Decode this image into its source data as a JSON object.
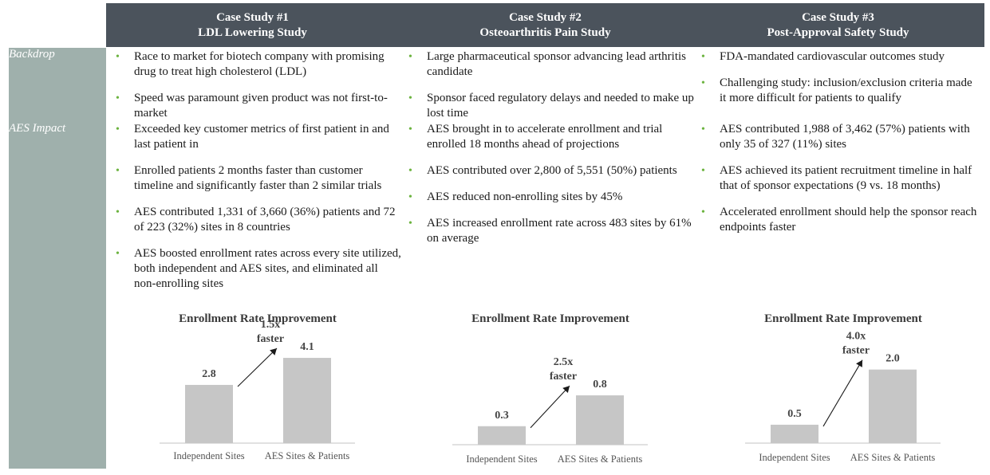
{
  "header": {
    "columns": [
      {
        "line1": "Case Study #1",
        "line2": "LDL Lowering Study"
      },
      {
        "line1": "Case Study #2",
        "line2": "Osteoarthritis Pain Study"
      },
      {
        "line1": "Case Study #3",
        "line2": "Post-Approval Safety Study"
      }
    ]
  },
  "rows": {
    "backdrop_label": "Backdrop",
    "impact_label": "AES Impact"
  },
  "studies": [
    {
      "backdrop": [
        "Race to market for biotech company with promising drug to treat high cholesterol (LDL)",
        "Speed was paramount given product was not first-to-market"
      ],
      "impact": [
        "Exceeded key customer metrics of first patient in and last patient in",
        "Enrolled patients 2 months faster than customer timeline and significantly faster than 2 similar trials",
        "AES contributed 1,331 of 3,660 (36%) patients and 72 of 223 (32%) sites in 8 countries",
        "AES boosted enrollment rates across every site utilized, both independent and AES sites, and eliminated all non-enrolling sites"
      ]
    },
    {
      "backdrop": [
        "Large pharmaceutical sponsor advancing lead arthritis candidate",
        "Sponsor faced regulatory delays and needed to make up lost time"
      ],
      "impact": [
        "AES brought in to accelerate enrollment and trial enrolled 18 months ahead of projections",
        "AES contributed over 2,800 of 5,551 (50%) patients",
        "AES reduced non-enrolling sites by 45%",
        "AES increased enrollment rate across 483 sites by 61% on average"
      ]
    },
    {
      "backdrop": [
        "FDA-mandated cardiovascular outcomes study",
        "Challenging study: inclusion/exclusion criteria made it more difficult for patients to qualify"
      ],
      "impact": [
        "AES contributed 1,988 of 3,462 (57%) patients with only 35 of 327 (11%) sites",
        "AES achieved its patient recruitment timeline in half that of sponsor expectations (9 vs. 18 months)",
        "Accelerated enrollment should help the sponsor reach endpoints faster"
      ]
    }
  ],
  "bullet_char": "•",
  "colors": {
    "header_bg": "#4b535c",
    "sidebar_bg": "#9fb0ac",
    "bullet": "#6cb33f",
    "bar": "#c6c6c6"
  },
  "chart_data": [
    {
      "type": "bar",
      "title": "Enrollment Rate Improvement",
      "categories": [
        "Independent Sites",
        "AES Sites & Patients"
      ],
      "values": [
        2.8,
        4.1
      ],
      "value_labels": [
        "2.8",
        "4.1"
      ],
      "annotation": {
        "line1": "1.5x",
        "line2": "faster"
      },
      "ylim": [
        0,
        4.6
      ],
      "xlabel": "",
      "ylabel": ""
    },
    {
      "type": "bar",
      "title": "Enrollment Rate Improvement",
      "categories": [
        "Independent Sites",
        "AES Sites & Patients"
      ],
      "values": [
        0.3,
        0.8
      ],
      "value_labels": [
        "0.3",
        "0.8"
      ],
      "annotation": {
        "line1": "2.5x",
        "line2": "faster"
      },
      "ylim": [
        0,
        1.55
      ],
      "xlabel": "",
      "ylabel": ""
    },
    {
      "type": "bar",
      "title": "Enrollment Rate Improvement",
      "categories": [
        "Independent Sites",
        "AES Sites & Patients"
      ],
      "values": [
        0.5,
        2.0
      ],
      "value_labels": [
        "0.5",
        "2.0"
      ],
      "annotation": {
        "line1": "4.0x",
        "line2": "faster"
      },
      "ylim": [
        0,
        2.6
      ],
      "xlabel": "",
      "ylabel": ""
    }
  ]
}
